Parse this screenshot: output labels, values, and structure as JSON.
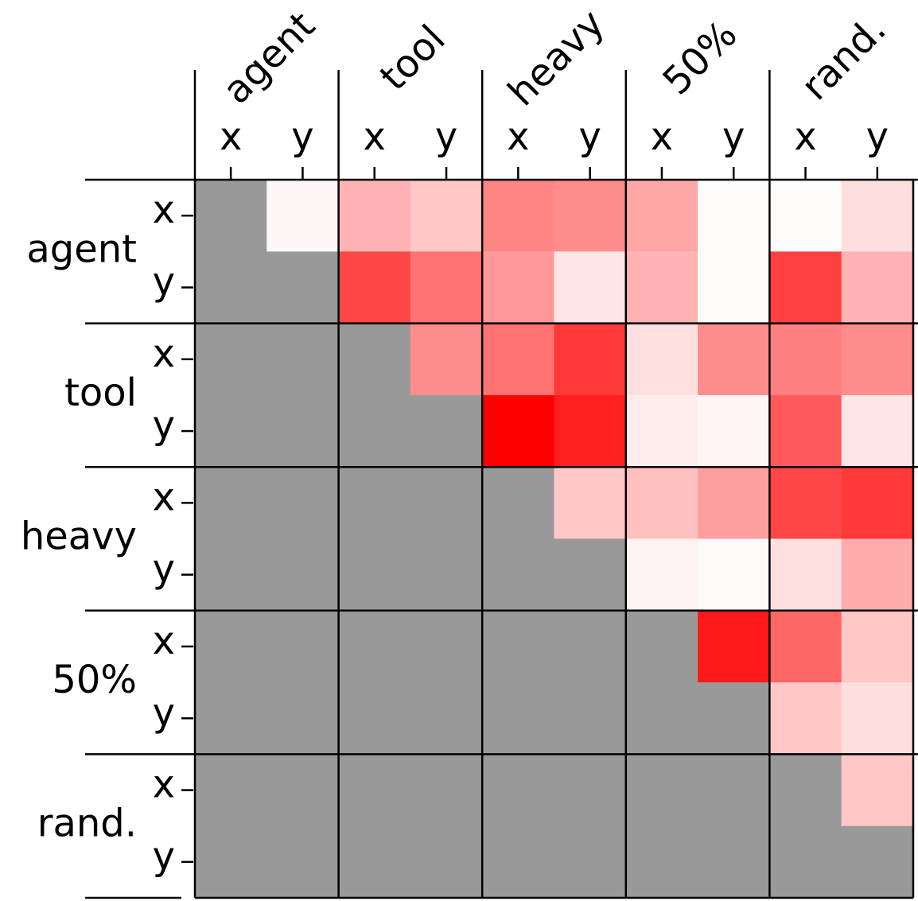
{
  "chart_data": {
    "type": "heatmap",
    "groups": [
      "agent",
      "tool",
      "heavy",
      "50%",
      "rand."
    ],
    "sublabels": [
      "x",
      "y"
    ],
    "values": [
      [
        null,
        0.03,
        0.3,
        0.22,
        0.48,
        0.45,
        0.35,
        0.01,
        0.01,
        0.13
      ],
      [
        null,
        null,
        0.72,
        0.55,
        0.4,
        0.1,
        0.3,
        0.01,
        0.75,
        0.3
      ],
      [
        null,
        null,
        null,
        0.45,
        0.55,
        0.78,
        0.12,
        0.45,
        0.5,
        0.45
      ],
      [
        null,
        null,
        null,
        null,
        1.0,
        0.88,
        0.07,
        0.04,
        0.65,
        0.1
      ],
      [
        null,
        null,
        null,
        null,
        null,
        0.22,
        0.25,
        0.38,
        0.72,
        0.78
      ],
      [
        null,
        null,
        null,
        null,
        null,
        null,
        0.05,
        0.02,
        0.12,
        0.33
      ],
      [
        null,
        null,
        null,
        null,
        null,
        null,
        null,
        0.9,
        0.6,
        0.22
      ],
      [
        null,
        null,
        null,
        null,
        null,
        null,
        null,
        null,
        0.22,
        0.13
      ],
      [
        null,
        null,
        null,
        null,
        null,
        null,
        null,
        null,
        null,
        0.22
      ],
      [
        null,
        null,
        null,
        null,
        null,
        null,
        null,
        null,
        null,
        null
      ]
    ],
    "vlim": [
      0,
      1
    ],
    "low_color": "#ffffff",
    "high_color": "#ff0000",
    "missing_color": "#999999"
  }
}
